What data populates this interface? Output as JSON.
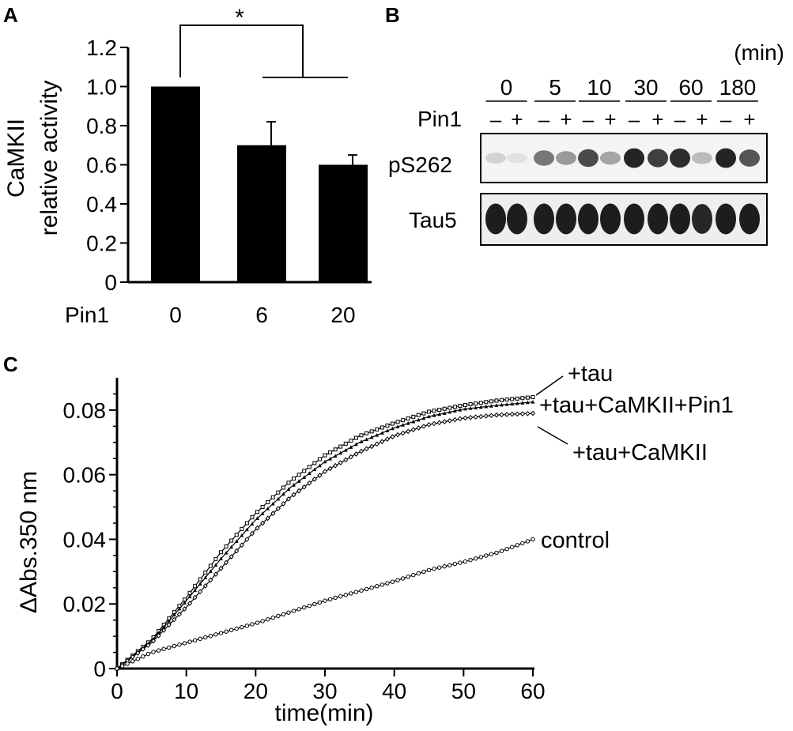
{
  "panels": {
    "a": "A",
    "b": "B",
    "c": "C"
  },
  "colors": {
    "bar": "#000000",
    "axis": "#000000",
    "background": "#ffffff",
    "blot_dark": "#111111"
  },
  "chart_data": [
    {
      "type": "bar",
      "panel": "A",
      "ylabel_line1": "CaMKII",
      "ylabel_line2": "relative activity",
      "xlabel": "Pin1",
      "categories": [
        "0",
        "6",
        "20"
      ],
      "values": [
        1.0,
        0.7,
        0.6
      ],
      "errors": [
        0,
        0.12,
        0.05
      ],
      "ylim": [
        0,
        1.2
      ],
      "yticks": [
        0,
        0.2,
        0.4,
        0.6,
        0.8,
        1.0,
        1.2
      ],
      "ytick_labels": [
        "0",
        "0.2",
        "0.4",
        "0.6",
        "0.8",
        "1.0",
        "1.2"
      ],
      "significance": "*",
      "grid": false
    },
    {
      "type": "blot",
      "panel": "B",
      "unit_label": "(min)",
      "time_points": [
        "0",
        "5",
        "10",
        "30",
        "60",
        "180"
      ],
      "row_label": "Pin1",
      "lane_signs": [
        "–",
        "+",
        "–",
        "+",
        "–",
        "+",
        "–",
        "+",
        "–",
        "+",
        "–",
        "+"
      ],
      "blots": [
        {
          "name": "pS262",
          "intensities": [
            0.15,
            0.08,
            0.55,
            0.4,
            0.75,
            0.35,
            0.92,
            0.8,
            0.88,
            0.25,
            0.92,
            0.7
          ]
        },
        {
          "name": "Tau5",
          "intensities": [
            0.95,
            0.95,
            0.95,
            0.95,
            0.95,
            0.95,
            0.95,
            0.95,
            0.95,
            0.9,
            0.95,
            0.95
          ]
        }
      ]
    },
    {
      "type": "line",
      "panel": "C",
      "xlabel": "time(min)",
      "ylabel": "ΔAbs.350 nm",
      "xlim": [
        0,
        60
      ],
      "ylim": [
        0,
        0.09
      ],
      "xticks": [
        0,
        10,
        20,
        30,
        40,
        50,
        60
      ],
      "yticks": [
        0,
        0.02,
        0.04,
        0.06,
        0.08
      ],
      "ytick_labels": [
        "0",
        "0.02",
        "0.04",
        "0.06",
        "0.08"
      ],
      "grid": false,
      "series": [
        {
          "name": "+tau",
          "marker": "square",
          "x": [
            0,
            5,
            10,
            15,
            20,
            25,
            30,
            35,
            40,
            45,
            50,
            55,
            60
          ],
          "y": [
            0,
            0.009,
            0.022,
            0.036,
            0.048,
            0.058,
            0.066,
            0.072,
            0.076,
            0.0795,
            0.0815,
            0.083,
            0.084
          ]
        },
        {
          "name": "+tau+CaMKII+Pin1",
          "marker": "triangle",
          "x": [
            0,
            5,
            10,
            15,
            20,
            25,
            30,
            35,
            40,
            45,
            50,
            55,
            60
          ],
          "y": [
            0,
            0.0085,
            0.021,
            0.034,
            0.046,
            0.056,
            0.064,
            0.07,
            0.0745,
            0.078,
            0.0803,
            0.0815,
            0.0825
          ]
        },
        {
          "name": "+tau+CaMKII",
          "marker": "diamond",
          "x": [
            0,
            5,
            10,
            15,
            20,
            25,
            30,
            35,
            40,
            45,
            50,
            55,
            60
          ],
          "y": [
            0,
            0.008,
            0.019,
            0.031,
            0.043,
            0.053,
            0.061,
            0.067,
            0.072,
            0.0755,
            0.0775,
            0.0785,
            0.079
          ]
        },
        {
          "name": "control",
          "marker": "circle",
          "x": [
            0,
            5,
            10,
            15,
            20,
            25,
            30,
            35,
            40,
            45,
            50,
            55,
            60
          ],
          "y": [
            0,
            0.005,
            0.008,
            0.011,
            0.014,
            0.0175,
            0.021,
            0.024,
            0.027,
            0.0305,
            0.033,
            0.036,
            0.04
          ]
        }
      ]
    }
  ]
}
